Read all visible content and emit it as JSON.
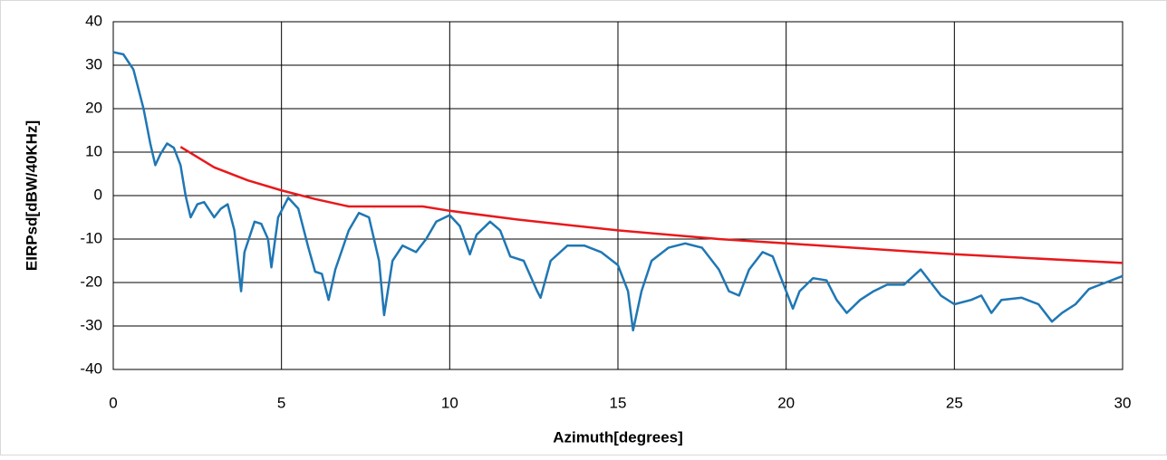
{
  "chart_data": {
    "type": "line",
    "xlabel": "Azimuth[degrees]",
    "ylabel": "EIRPsd[dBW/40KHz]",
    "xlim": [
      0,
      30
    ],
    "xticks": [
      0,
      5,
      10,
      15,
      20,
      25,
      30
    ],
    "ylim": [
      -40,
      40
    ],
    "yticks": [
      -40,
      -30,
      -20,
      -10,
      0,
      10,
      20,
      30,
      40
    ],
    "grid": true,
    "series": [
      {
        "color": "#1f77b4",
        "x": [
          0,
          0.3,
          0.6,
          0.9,
          1.1,
          1.25,
          1.4,
          1.6,
          1.8,
          2,
          2.15,
          2.3,
          2.5,
          2.7,
          3,
          3.2,
          3.4,
          3.6,
          3.8,
          3.9,
          4.2,
          4.4,
          4.6,
          4.7,
          4.9,
          5.2,
          5.5,
          5.8,
          6,
          6.2,
          6.4,
          6.6,
          7,
          7.3,
          7.6,
          7.9,
          8.05,
          8.3,
          8.6,
          9,
          9.3,
          9.6,
          10,
          10.3,
          10.6,
          10.8,
          11.2,
          11.5,
          11.8,
          12.2,
          12.6,
          12.7,
          13,
          13.5,
          14,
          14.5,
          15,
          15.3,
          15.45,
          15.7,
          16,
          16.5,
          17,
          17.5,
          18,
          18.3,
          18.6,
          18.9,
          19.3,
          19.6,
          20,
          20.2,
          20.4,
          20.8,
          21.2,
          21.5,
          21.8,
          22.2,
          22.6,
          23,
          23.5,
          24,
          24.3,
          24.6,
          25,
          25.5,
          25.8,
          26.1,
          26.4,
          27,
          27.5,
          27.9,
          28.2,
          28.6,
          29,
          29.5,
          30
        ],
        "values": [
          33,
          32.5,
          29,
          20,
          12,
          7,
          9.5,
          12,
          11,
          7,
          0,
          -5,
          -2,
          -1.5,
          -5,
          -3,
          -2,
          -8,
          -22,
          -13,
          -6,
          -6.5,
          -10,
          -16.5,
          -5,
          -0.5,
          -3,
          -12,
          -17.5,
          -18,
          -24,
          -17,
          -8,
          -4,
          -5,
          -15,
          -27.5,
          -15,
          -11.5,
          -13,
          -10,
          -6,
          -4.5,
          -7,
          -13.5,
          -9,
          -6,
          -8,
          -14,
          -15,
          -22,
          -23.5,
          -15,
          -11.5,
          -11.5,
          -13,
          -16,
          -22,
          -31,
          -22,
          -15,
          -12,
          -11,
          -12,
          -17,
          -22,
          -23,
          -17,
          -13,
          -14,
          -22,
          -26,
          -22,
          -19,
          -19.5,
          -24,
          -27,
          -24,
          -22,
          -20.5,
          -20.5,
          -17,
          -20,
          -23,
          -25,
          -24,
          -23,
          -27,
          -24,
          -23.5,
          -25,
          -29,
          -27,
          -25,
          -21.5,
          -20,
          -18.5
        ]
      },
      {
        "color": "#e8191c",
        "x": [
          2,
          3,
          4,
          5,
          6,
          7,
          9.2,
          10,
          12,
          15,
          18,
          20,
          25,
          30
        ],
        "values": [
          11.2,
          6.5,
          3.5,
          1.2,
          -0.8,
          -2.5,
          -2.5,
          -3.5,
          -5.5,
          -8,
          -10,
          -11,
          -13.5,
          -15.5
        ]
      }
    ]
  }
}
